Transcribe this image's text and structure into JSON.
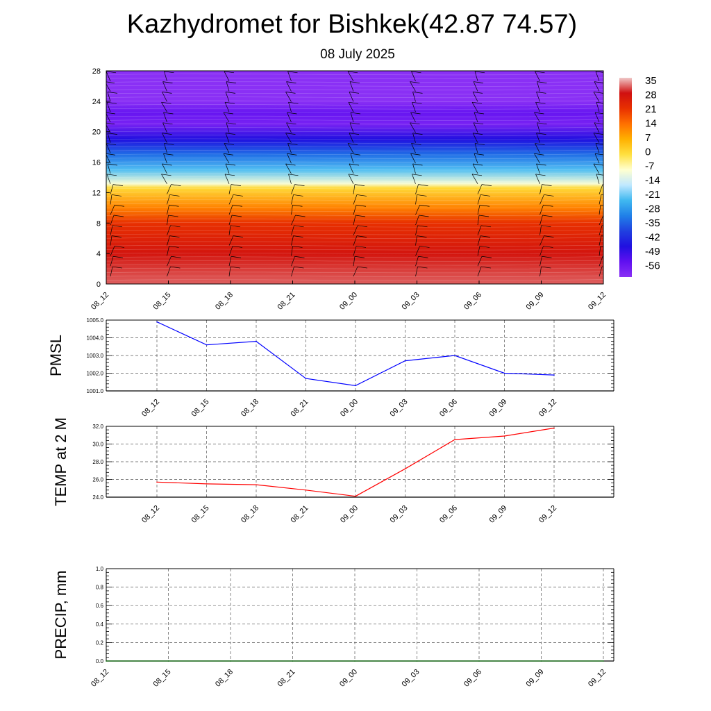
{
  "title": "Kazhydromet for Bishkek(42.87 74.57)",
  "subtitle": "08 July 2025",
  "chart_data": [
    {
      "type": "heatmap",
      "title": "",
      "ylim": [
        0,
        28
      ],
      "yticks": [
        0,
        4,
        8,
        12,
        16,
        20,
        24,
        28
      ],
      "categories": [
        "08_12",
        "08_15",
        "08_18",
        "08_21",
        "09_00",
        "09_03",
        "09_06",
        "09_09",
        "09_12"
      ],
      "colorbar": {
        "labels": [
          "35",
          "28",
          "21",
          "14",
          "7",
          "0",
          "-7",
          "-14",
          "-21",
          "-28",
          "-35",
          "-42",
          "-49",
          "-56"
        ],
        "stops": [
          "#f0c8c8",
          "#d01010",
          "#e83000",
          "#ff7000",
          "#ffb000",
          "#ffe040",
          "#ffffd0",
          "#c0e8ff",
          "#40b8f0",
          "#2080e8",
          "#2040e0",
          "#2010e0",
          "#6010f0",
          "#8a30f5"
        ]
      },
      "color_values_by_level": [
        {
          "level": 0,
          "value": 31
        },
        {
          "level": 4,
          "value": 27
        },
        {
          "level": 8,
          "value": 21
        },
        {
          "level": 10,
          "value": 12
        },
        {
          "level": 12.6,
          "value": 1
        },
        {
          "level": 13.2,
          "value": -8
        },
        {
          "level": 15,
          "value": -20
        },
        {
          "level": 17,
          "value": -30
        },
        {
          "level": 19,
          "value": -42
        },
        {
          "level": 21,
          "value": -53
        },
        {
          "level": 22.5,
          "value": -50
        },
        {
          "level": 24,
          "value": -56
        },
        {
          "level": 28,
          "value": -56
        }
      ],
      "wind_barbs": "present"
    },
    {
      "type": "line",
      "ylabel": "PMSL",
      "ylim": [
        1001.0,
        1005.0
      ],
      "yticks": [
        "1001.0",
        "1002.0",
        "1003.0",
        "1004.0",
        "1005.0"
      ],
      "categories": [
        "08_12",
        "08_15",
        "08_18",
        "08_21",
        "09_00",
        "09_03",
        "09_06",
        "09_09",
        "09_12"
      ],
      "series": [
        {
          "color": "#0000ff",
          "values": [
            1004.9,
            1003.6,
            1003.8,
            1001.7,
            1001.3,
            1002.7,
            1003.0,
            1002.0,
            1001.9
          ]
        }
      ],
      "grid": true
    },
    {
      "type": "line",
      "ylabel": "TEMP at 2 M",
      "ylim": [
        24.0,
        32.0
      ],
      "yticks": [
        "24.0",
        "26.0",
        "28.0",
        "30.0",
        "32.0"
      ],
      "categories": [
        "08_12",
        "08_15",
        "08_18",
        "08_21",
        "09_00",
        "09_03",
        "09_06",
        "09_09",
        "09_12"
      ],
      "series": [
        {
          "color": "#ff0000",
          "values": [
            25.7,
            25.5,
            25.4,
            24.8,
            24.1,
            27.2,
            30.5,
            30.9,
            31.8
          ]
        }
      ],
      "grid": true
    },
    {
      "type": "line",
      "ylabel": "PRECIP, mm",
      "ylim": [
        0.0,
        1.0
      ],
      "yticks": [
        "0.0",
        "0.2",
        "0.4",
        "0.6",
        "0.8",
        "1.0"
      ],
      "categories": [
        "08_12",
        "08_15",
        "08_18",
        "08_21",
        "09_00",
        "09_03",
        "09_06",
        "09_09",
        "09_12"
      ],
      "series": [
        {
          "color": "#006400",
          "values": [
            0,
            0,
            0,
            0,
            0,
            0,
            0,
            0,
            0
          ]
        }
      ],
      "grid": true
    }
  ]
}
